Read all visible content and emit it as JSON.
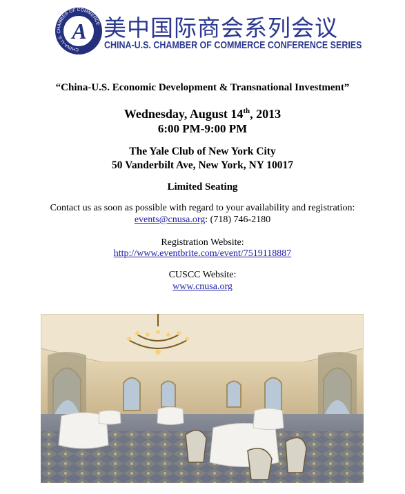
{
  "header": {
    "title_cn": "美中国际商会系列会议",
    "title_en": "CHINA-U.S. CHAMBER OF COMMERCE CONFERENCE SERIES",
    "logo_letter": "A",
    "logo_ring": "CHINA-U.S. CHAMBER OF COMMERCE"
  },
  "event": {
    "title": "“China-U.S. Economic Development & Transnational Investment”",
    "date": "Wednesday, August 14",
    "date_sup": "th",
    "date_year": ", 2013",
    "time": "6:00 PM-9:00 PM",
    "venue": "The Yale Club of New York City",
    "address": "50 Vanderbilt Ave, New York, NY 10017",
    "seating": "Limited Seating"
  },
  "contact": {
    "text": "Contact us as soon as possible with regard to your availability and registration:",
    "email": "events@cnusa.org",
    "phone": ": (718) 746-2180"
  },
  "registration": {
    "label": "Registration Website:",
    "url": "http://www.eventbrite.com/event/7519118887"
  },
  "cuscc": {
    "label": "CUSCC Website:",
    "url": "www.cnusa.org"
  }
}
